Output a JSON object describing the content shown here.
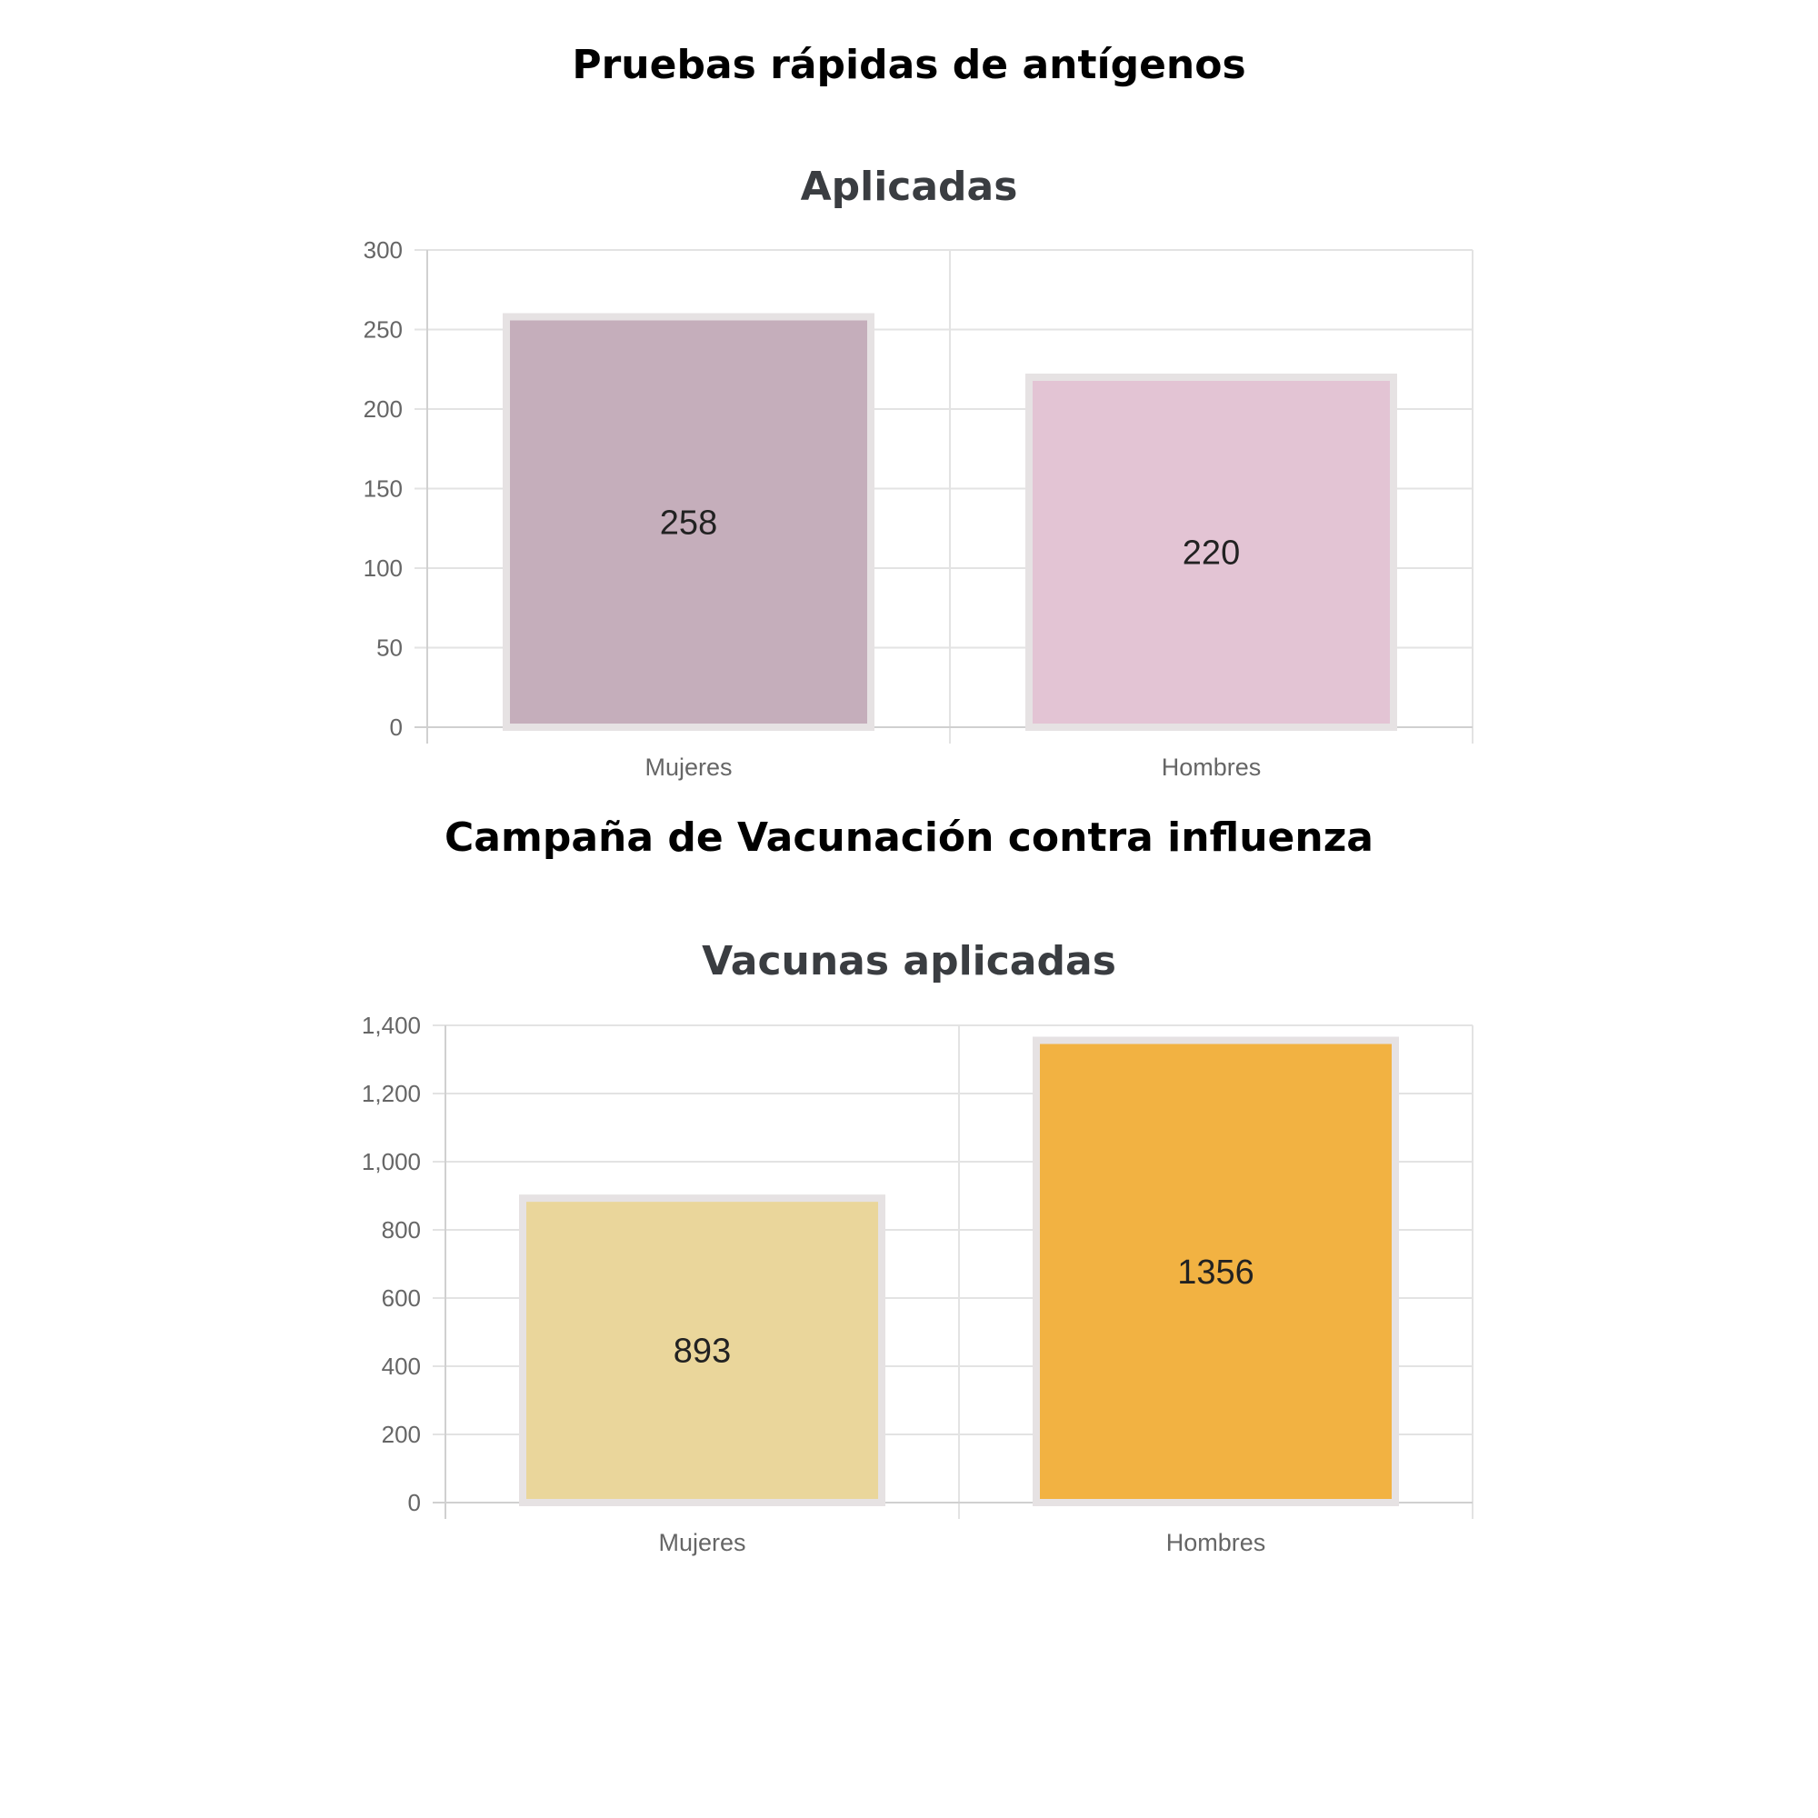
{
  "sections": [
    {
      "heading": "Pruebas rápidas de antígenos"
    },
    {
      "heading": "Campaña de Vacunación contra influenza"
    }
  ],
  "chart_data": [
    {
      "type": "bar",
      "title": "Aplicadas",
      "categories": [
        "Mujeres",
        "Hombres"
      ],
      "values": [
        258,
        220
      ],
      "data_labels": [
        "258",
        "220"
      ],
      "colors": [
        "#c5aebb",
        "#e3c4d4"
      ],
      "border_color": "#e6e2e3",
      "ylim": [
        0,
        300
      ],
      "yticks": [
        0,
        50,
        100,
        150,
        200,
        250,
        300
      ],
      "ytick_labels": [
        "0",
        "50",
        "100",
        "150",
        "200",
        "250",
        "300"
      ],
      "grid": true,
      "legend": "none"
    },
    {
      "type": "bar",
      "title": "Vacunas aplicadas",
      "categories": [
        "Mujeres",
        "Hombres"
      ],
      "values": [
        893,
        1356
      ],
      "data_labels": [
        "893",
        "1356"
      ],
      "colors": [
        "#ead69b",
        "#f2b242"
      ],
      "border_color": "#e6e2e3",
      "ylim": [
        0,
        1400
      ],
      "yticks": [
        0,
        200,
        400,
        600,
        800,
        1000,
        1200,
        1400
      ],
      "ytick_labels": [
        "0",
        "200",
        "400",
        "600",
        "800",
        "1,000",
        "1,200",
        "1,400"
      ],
      "grid": true,
      "legend": "none"
    }
  ]
}
